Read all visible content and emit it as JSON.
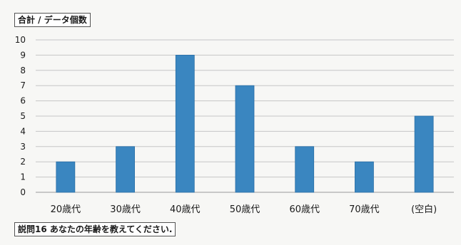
{
  "value_field_button": "合計 / データ個数",
  "row_field_button": "説問16 あなたの年齢を教えてください.",
  "colors": {
    "bar": "#3a86c0",
    "grid": "#c6c6c6",
    "text": "#1a1a1a"
  },
  "chart_data": {
    "type": "bar",
    "categories": [
      "20歳代",
      "30歳代",
      "40歳代",
      "50歳代",
      "60歳代",
      "70歳代",
      "(空白)"
    ],
    "values": [
      2,
      3,
      9,
      7,
      3,
      2,
      5
    ],
    "ylim": [
      0,
      10
    ],
    "yticks": [
      0,
      1,
      2,
      3,
      4,
      5,
      6,
      7,
      8,
      9,
      10
    ],
    "grid": true,
    "legend": "none"
  }
}
